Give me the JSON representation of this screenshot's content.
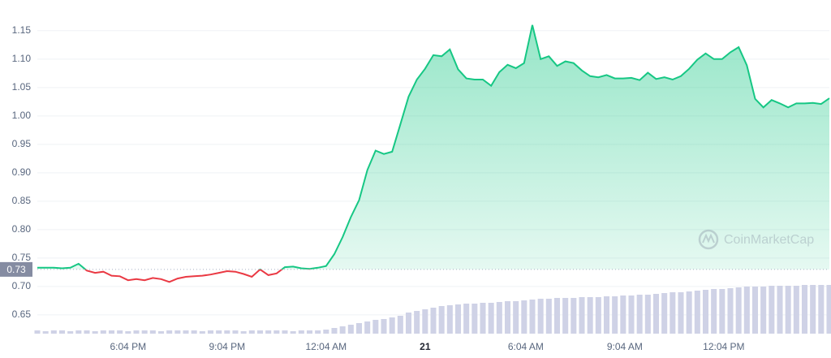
{
  "chart_data": {
    "type": "line",
    "xlim": [
      0,
      96
    ],
    "xticks": [
      {
        "value": 11,
        "label": "6:04 PM"
      },
      {
        "value": 23,
        "label": "9:04 PM"
      },
      {
        "value": 35,
        "label": "12:04 AM"
      },
      {
        "value": 47,
        "label": "21"
      },
      {
        "value": 59.2,
        "label": "6:04 AM"
      },
      {
        "value": 71.2,
        "label": "9:04 AM"
      },
      {
        "value": 83.2,
        "label": "12:04 PM"
      }
    ],
    "ylim": [
      0.617,
      1.204
    ],
    "yticks": [
      0.65,
      {
        "value": 0.7,
        "label": "0.70"
      },
      0.75,
      {
        "value": 0.8,
        "label": "0.80"
      },
      0.85,
      {
        "value": 0.9,
        "label": "0.90"
      },
      0.95,
      {
        "value": 1.0,
        "label": "1.00"
      },
      1.05,
      {
        "value": 1.1,
        "label": "1.10"
      },
      1.15
    ],
    "grid": true,
    "reference_line": 0.73,
    "up_color": "#16c784",
    "down_color": "#ea3943",
    "watermark": "CoinMarketCap",
    "values": [
      0.733,
      0.733,
      0.733,
      0.732,
      0.733,
      0.74,
      0.728,
      0.724,
      0.726,
      0.719,
      0.718,
      0.711,
      0.713,
      0.711,
      0.715,
      0.713,
      0.708,
      0.714,
      0.717,
      0.718,
      0.719,
      0.721,
      0.724,
      0.727,
      0.726,
      0.722,
      0.717,
      0.73,
      0.72,
      0.723,
      0.734,
      0.735,
      0.732,
      0.731,
      0.733,
      0.736,
      0.757,
      0.787,
      0.822,
      0.852,
      0.905,
      0.939,
      0.933,
      0.937,
      0.985,
      1.034,
      1.064,
      1.083,
      1.107,
      1.105,
      1.117,
      1.082,
      1.066,
      1.064,
      1.064,
      1.053,
      1.077,
      1.09,
      1.084,
      1.093,
      1.16,
      1.1,
      1.105,
      1.088,
      1.096,
      1.093,
      1.08,
      1.07,
      1.068,
      1.072,
      1.066,
      1.066,
      1.067,
      1.063,
      1.076,
      1.065,
      1.068,
      1.064,
      1.07,
      1.083,
      1.099,
      1.11,
      1.1,
      1.1,
      1.112,
      1.121,
      1.089,
      1.03,
      1.015,
      1.028,
      1.022,
      1.015,
      1.022,
      1.022,
      1.023,
      1.021,
      1.031
    ],
    "volume_color": "#cfd2e6",
    "volume": [
      4,
      3,
      4,
      4,
      3,
      4,
      4,
      3,
      4,
      4,
      4,
      3,
      4,
      4,
      4,
      3,
      4,
      4,
      4,
      4,
      3,
      4,
      4,
      4,
      4,
      3,
      4,
      4,
      4,
      4,
      4,
      3,
      4,
      4,
      4,
      5,
      7,
      9,
      11,
      13,
      15,
      17,
      18,
      20,
      22,
      26,
      28,
      30,
      32,
      34,
      35,
      36,
      37,
      37,
      38,
      38,
      39,
      40,
      40,
      41,
      42,
      43,
      43,
      44,
      44,
      44,
      45,
      45,
      45,
      46,
      46,
      47,
      47,
      48,
      48,
      49,
      50,
      51,
      51,
      52,
      53,
      54,
      55,
      55,
      56,
      57,
      58,
      58,
      58,
      59,
      59,
      59,
      59,
      60,
      60,
      60,
      60
    ]
  }
}
